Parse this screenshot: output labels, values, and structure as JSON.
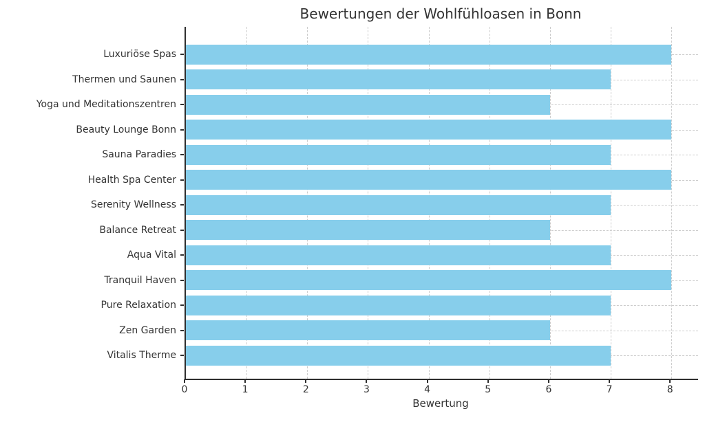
{
  "chart_data": {
    "type": "bar",
    "orientation": "horizontal",
    "title": "Bewertungen der Wohlfühloasen in Bonn",
    "xlabel": "Bewertung",
    "ylabel": "",
    "categories": [
      "Luxuriöse Spas",
      "Thermen und Saunen",
      "Yoga und Meditationszentren",
      "Beauty Lounge Bonn",
      "Sauna Paradies",
      "Health Spa Center",
      "Serenity Wellness",
      "Balance Retreat",
      "Aqua Vital",
      "Tranquil Haven",
      "Pure Relaxation",
      "Zen Garden",
      "Vitalis Therme"
    ],
    "values": [
      8,
      7,
      6,
      8,
      7,
      8,
      7,
      6,
      7,
      8,
      7,
      6,
      7
    ],
    "x_ticks": [
      0,
      1,
      2,
      3,
      4,
      5,
      6,
      7,
      8
    ],
    "xlim": [
      0,
      8.44
    ],
    "grid": true,
    "legend": null,
    "colors": {
      "bar": "#87CEEB",
      "axis": "#2e2e2e",
      "text": "#333333",
      "grid": "#cccccc",
      "background": "#ffffff"
    }
  }
}
